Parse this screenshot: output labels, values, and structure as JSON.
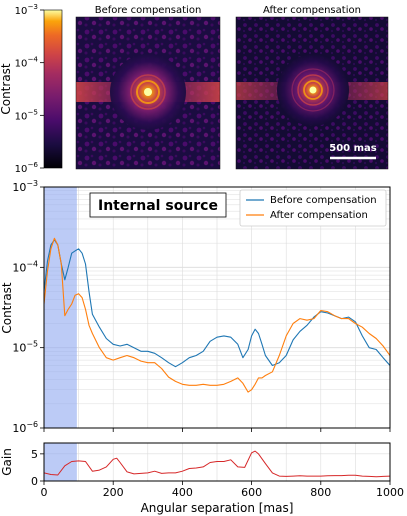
{
  "colorbar": {
    "label": "Contrast",
    "ticks": [
      {
        "exp": -3,
        "label": "10",
        "sup": "−3"
      },
      {
        "exp": -4,
        "label": "10",
        "sup": "−4"
      },
      {
        "exp": -5,
        "label": "10",
        "sup": "−5"
      },
      {
        "exp": -6,
        "label": "10",
        "sup": "−6"
      }
    ]
  },
  "images": [
    {
      "title": "Before compensation",
      "scalebar": ""
    },
    {
      "title": "After compensation",
      "scalebar": "500 mas"
    }
  ],
  "chart_data": [
    {
      "type": "line",
      "title": "Internal source",
      "xlabel": "",
      "ylabel": "Contrast",
      "xlim": [
        0,
        1000
      ],
      "ylim_log10": [
        -6,
        -3
      ],
      "y_scale": "log",
      "grid": true,
      "legend_placement": "top-right",
      "shaded_region_x": [
        0,
        95
      ],
      "shaded_color": "#8fa8f0",
      "yticks": [
        {
          "exp": -3,
          "label": "10",
          "sup": "−3"
        },
        {
          "exp": -4,
          "label": "10",
          "sup": "−4"
        },
        {
          "exp": -5,
          "label": "10",
          "sup": "−5"
        },
        {
          "exp": -6,
          "label": "10",
          "sup": "−6"
        }
      ],
      "series": [
        {
          "name": "Before compensation",
          "color": "#1f77b4",
          "x": [
            0,
            10,
            20,
            30,
            40,
            50,
            60,
            70,
            80,
            90,
            100,
            110,
            120,
            130,
            140,
            160,
            180,
            200,
            220,
            240,
            260,
            280,
            300,
            320,
            340,
            360,
            380,
            400,
            420,
            440,
            460,
            480,
            500,
            520,
            540,
            560,
            575,
            590,
            600,
            610,
            620,
            630,
            640,
            660,
            680,
            700,
            720,
            740,
            760,
            780,
            800,
            820,
            840,
            860,
            880,
            900,
            920,
            940,
            960,
            980,
            1000
          ],
          "y": [
            5e-05,
            0.00012,
            0.00019,
            0.00022,
            0.00019,
            0.00011,
            7e-05,
            0.0001,
            0.00015,
            0.00016,
            0.00017,
            0.00015,
            0.00011,
            5e-05,
            2.6e-05,
            1.8e-05,
            1.3e-05,
            1.1e-05,
            1.05e-05,
            1.1e-05,
            1e-05,
            9e-06,
            9e-06,
            8.5e-06,
            7.5e-06,
            6.5e-06,
            5.8e-06,
            6.5e-06,
            7.5e-06,
            8e-06,
            9e-06,
            1.2e-05,
            1.35e-05,
            1.4e-05,
            1.35e-05,
            1.1e-05,
            7.5e-06,
            9.5e-06,
            1.4e-05,
            1.7e-05,
            1.5e-05,
            1.1e-05,
            8e-06,
            6e-06,
            6.5e-06,
            8e-06,
            1.25e-05,
            1.6e-05,
            1.9e-05,
            2.4e-05,
            2.8e-05,
            2.7e-05,
            2.5e-05,
            2.3e-05,
            2.4e-05,
            2.1e-05,
            1.4e-05,
            1e-05,
            9.5e-06,
            7.5e-06,
            6e-06
          ]
        },
        {
          "name": "After compensation",
          "color": "#ff7f0e",
          "x": [
            0,
            10,
            20,
            30,
            40,
            50,
            60,
            70,
            80,
            90,
            100,
            110,
            120,
            130,
            140,
            160,
            180,
            200,
            220,
            240,
            260,
            280,
            300,
            320,
            340,
            360,
            380,
            400,
            420,
            440,
            460,
            480,
            500,
            520,
            540,
            560,
            575,
            590,
            600,
            610,
            620,
            630,
            640,
            660,
            680,
            700,
            720,
            740,
            760,
            780,
            800,
            820,
            840,
            860,
            880,
            900,
            920,
            940,
            960,
            980,
            1000
          ],
          "y": [
            3.5e-05,
            9e-05,
            0.00017,
            0.00023,
            0.00019,
            0.00011,
            2.5e-05,
            3e-05,
            3.5e-05,
            4.5e-05,
            4.7e-05,
            4.2e-05,
            3e-05,
            1.9e-05,
            1.5e-05,
            1e-05,
            7.5e-06,
            7e-06,
            7.5e-06,
            8e-06,
            7.5e-06,
            6.8e-06,
            6.5e-06,
            6.5e-06,
            5.5e-06,
            4.3e-06,
            3.8e-06,
            3.5e-06,
            3.4e-06,
            3.4e-06,
            3.5e-06,
            3.4e-06,
            3.4e-06,
            3.5e-06,
            3.8e-06,
            4.2e-06,
            3.6e-06,
            2.8e-06,
            3e-06,
            3.5e-06,
            4.2e-06,
            4.2e-06,
            4.5e-06,
            5e-06,
            8e-06,
            1.4e-05,
            2e-05,
            2.3e-05,
            2.2e-05,
            2.3e-05,
            2.9e-05,
            2.8e-05,
            2.5e-05,
            2.3e-05,
            2.3e-05,
            2e-05,
            1.8e-05,
            1.5e-05,
            1.3e-05,
            1.05e-05,
            8e-06
          ]
        }
      ]
    },
    {
      "type": "line",
      "title": "",
      "xlabel": "Angular separation [mas]",
      "ylabel": "Gain",
      "xlim": [
        0,
        1000
      ],
      "ylim": [
        0,
        7
      ],
      "xticks": [
        0,
        200,
        400,
        600,
        800,
        1000
      ],
      "yticks": [
        0,
        5
      ],
      "grid": true,
      "shaded_region_x": [
        0,
        95
      ],
      "series": [
        {
          "color": "#d62728",
          "x": [
            0,
            20,
            40,
            60,
            80,
            100,
            120,
            140,
            160,
            180,
            200,
            210,
            220,
            240,
            260,
            280,
            300,
            320,
            340,
            360,
            380,
            400,
            420,
            440,
            460,
            480,
            500,
            520,
            540,
            560,
            580,
            600,
            610,
            620,
            640,
            660,
            680,
            700,
            720,
            740,
            760,
            780,
            800,
            820,
            840,
            860,
            880,
            900,
            920,
            940,
            960,
            980,
            1000
          ],
          "y": [
            1.5,
            1.2,
            1.1,
            2.8,
            3.6,
            3.7,
            3.6,
            1.8,
            2.0,
            2.6,
            4.0,
            4.2,
            3.4,
            1.7,
            1.3,
            1.4,
            1.5,
            1.8,
            1.4,
            1.5,
            1.5,
            1.8,
            2.3,
            2.4,
            2.6,
            3.4,
            3.6,
            3.6,
            3.9,
            2.6,
            2.5,
            5.2,
            5.5,
            5.0,
            3.2,
            1.5,
            0.9,
            0.85,
            0.9,
            0.95,
            0.9,
            0.9,
            0.9,
            0.95,
            1.0,
            1.0,
            1.05,
            1.05,
            0.9,
            0.85,
            0.8,
            0.85,
            0.9
          ]
        }
      ]
    }
  ]
}
